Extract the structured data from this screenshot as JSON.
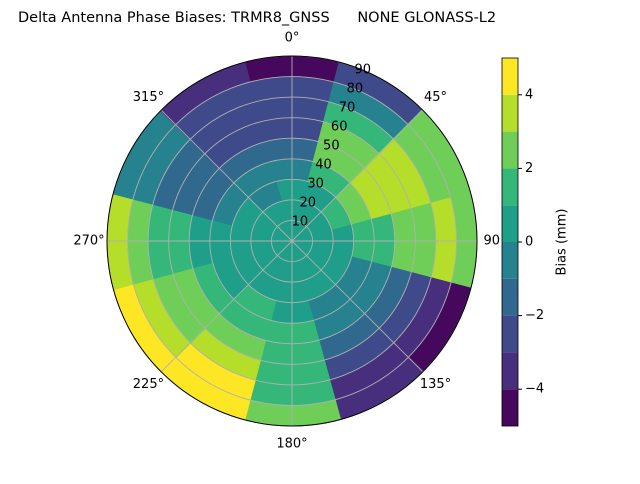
{
  "chart_data": {
    "type": "polar-contour",
    "title": "Delta Antenna Phase Biases: TRMR8_GNSS      NONE GLONASS-L2",
    "colorbar_label": "Bias (mm)",
    "azimuth": [
      0,
      30,
      60,
      90,
      120,
      150,
      180,
      210,
      240,
      270,
      300,
      330
    ],
    "zenith": [
      5,
      15,
      25,
      35,
      45,
      55,
      65,
      75,
      85
    ],
    "values": [
      [
        0.5,
        0.3,
        0,
        -0.5,
        -1.5,
        -2.2,
        -2.5,
        -3,
        -4.2
      ],
      [
        0.5,
        0.5,
        0.8,
        1.5,
        2,
        2.5,
        1.5,
        -1,
        -2.5
      ],
      [
        0.5,
        0.8,
        1.2,
        2,
        3,
        3.5,
        3,
        2.5,
        2
      ],
      [
        0.5,
        0.5,
        0.8,
        1,
        1.5,
        2,
        2.5,
        3,
        2.5
      ],
      [
        0.5,
        0.3,
        0,
        -0.5,
        -1,
        -1.5,
        -2.5,
        -3.5,
        -4.5
      ],
      [
        0.5,
        0.3,
        0,
        -0.5,
        -1,
        -1.5,
        -2.5,
        -3.2,
        -3.5
      ],
      [
        0.5,
        0.5,
        0.5,
        0.5,
        1,
        1,
        1.5,
        1.5,
        2
      ],
      [
        0.5,
        0.5,
        0.8,
        1,
        1.5,
        2.2,
        3,
        4.2,
        4.5
      ],
      [
        0.5,
        0.5,
        0.5,
        0.8,
        1.2,
        2,
        2.5,
        3.5,
        4.5
      ],
      [
        0.5,
        0.5,
        0.3,
        0.5,
        0.8,
        1.2,
        1.8,
        2.5,
        3
      ],
      [
        0.5,
        0.3,
        0,
        -0.5,
        -1.2,
        -1.5,
        -1.5,
        -1,
        -0.5
      ],
      [
        0.5,
        0.2,
        -0.5,
        -1,
        -2,
        -2.5,
        -2.8,
        -2.5,
        -3.5
      ]
    ],
    "rlim": [
      0,
      90
    ],
    "rticks": [
      10,
      20,
      30,
      40,
      50,
      60,
      70,
      80,
      90
    ],
    "thetaticks": [
      {
        "value": 0,
        "label": "0°"
      },
      {
        "value": 45,
        "label": "45°"
      },
      {
        "value": 90,
        "label": "90°"
      },
      {
        "value": 135,
        "label": "135°"
      },
      {
        "value": 180,
        "label": "180°"
      },
      {
        "value": 225,
        "label": "225°"
      },
      {
        "value": 270,
        "label": "270°"
      },
      {
        "value": 315,
        "label": "315°"
      }
    ],
    "theta_direction": "clockwise",
    "theta_zero": "N",
    "grid": true,
    "levels": [
      -5,
      -4,
      -3,
      -2,
      -1,
      0,
      1,
      2,
      3,
      4,
      5
    ],
    "colors": [
      "#46085c",
      "#472f7d",
      "#3e4a89",
      "#31688e",
      "#26828e",
      "#1f9e89",
      "#35b779",
      "#6ece58",
      "#b5de2b",
      "#fde725"
    ],
    "zlim": [
      -5,
      5
    ],
    "zticks": [
      {
        "value": -4,
        "label": "−4"
      },
      {
        "value": -2,
        "label": "−2"
      },
      0,
      2,
      4
    ]
  }
}
